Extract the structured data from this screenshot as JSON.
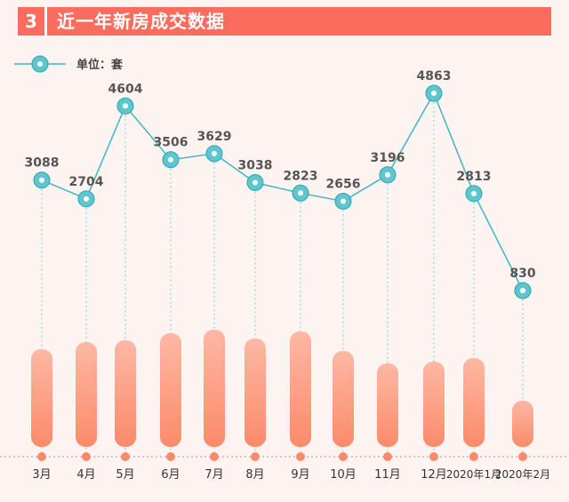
{
  "header": {
    "number": "3",
    "title": "近一年新房成交数据"
  },
  "legend": {
    "label": "单位：套"
  },
  "colors": {
    "accent": "#fb6b5e",
    "line": "#3fb6c4",
    "marker": "#5ec6cc",
    "bar_top": "#fdb8a4",
    "bar_bottom": "#fb8a6a"
  },
  "chart_data": {
    "type": "line",
    "categories": [
      "3月",
      "4月",
      "5月",
      "6月",
      "7月",
      "8月",
      "9月",
      "10月",
      "11月",
      "12月",
      "2020年1月",
      "2020年2月"
    ],
    "series": [
      {
        "values": [
          3088,
          2704,
          4604,
          3506,
          3629,
          3038,
          2823,
          2656,
          3196,
          4863,
          2813,
          830
        ]
      }
    ],
    "bar_values": [
      110,
      118,
      120,
      128,
      132,
      122,
      130,
      108,
      94,
      96,
      100,
      52
    ],
    "ylim": [
      0,
      5200
    ]
  }
}
